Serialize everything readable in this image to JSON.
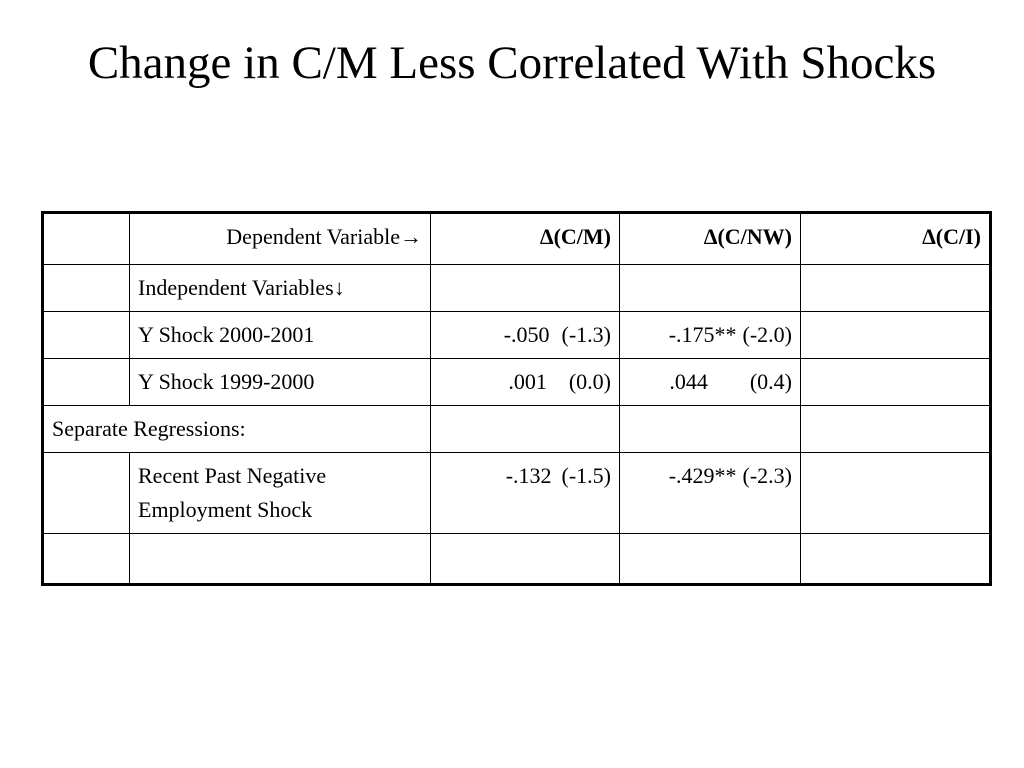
{
  "slide": {
    "title": "Change in C/M Less Correlated With Shocks"
  },
  "table": {
    "header": {
      "dependent_label": "Dependent Variable→",
      "col_cm": "∆(C/M)",
      "col_cnw": "∆(C/NW)",
      "col_ci": "∆(C/I)"
    },
    "independent_label": "Independent Variables↓",
    "rows": [
      {
        "label": "Y Shock 2000-2001",
        "cm_coef": "-.050",
        "cm_t": "(-1.3)",
        "cnw_coef": "-.175**",
        "cnw_t": "(-2.0)"
      },
      {
        "label": "Y Shock 1999-2000",
        "cm_coef": ".001",
        "cm_t": "(0.0)",
        "cnw_coef": ".044",
        "cnw_t": "(0.4)"
      }
    ],
    "separate_label": "Separate Regressions:",
    "separate_rows": [
      {
        "label": "Recent Past Negative Employment Shock",
        "cm_coef": "-.132",
        "cm_t": "(-1.5)",
        "cnw_coef": "-.429**",
        "cnw_t": "(-2.3)"
      }
    ]
  }
}
